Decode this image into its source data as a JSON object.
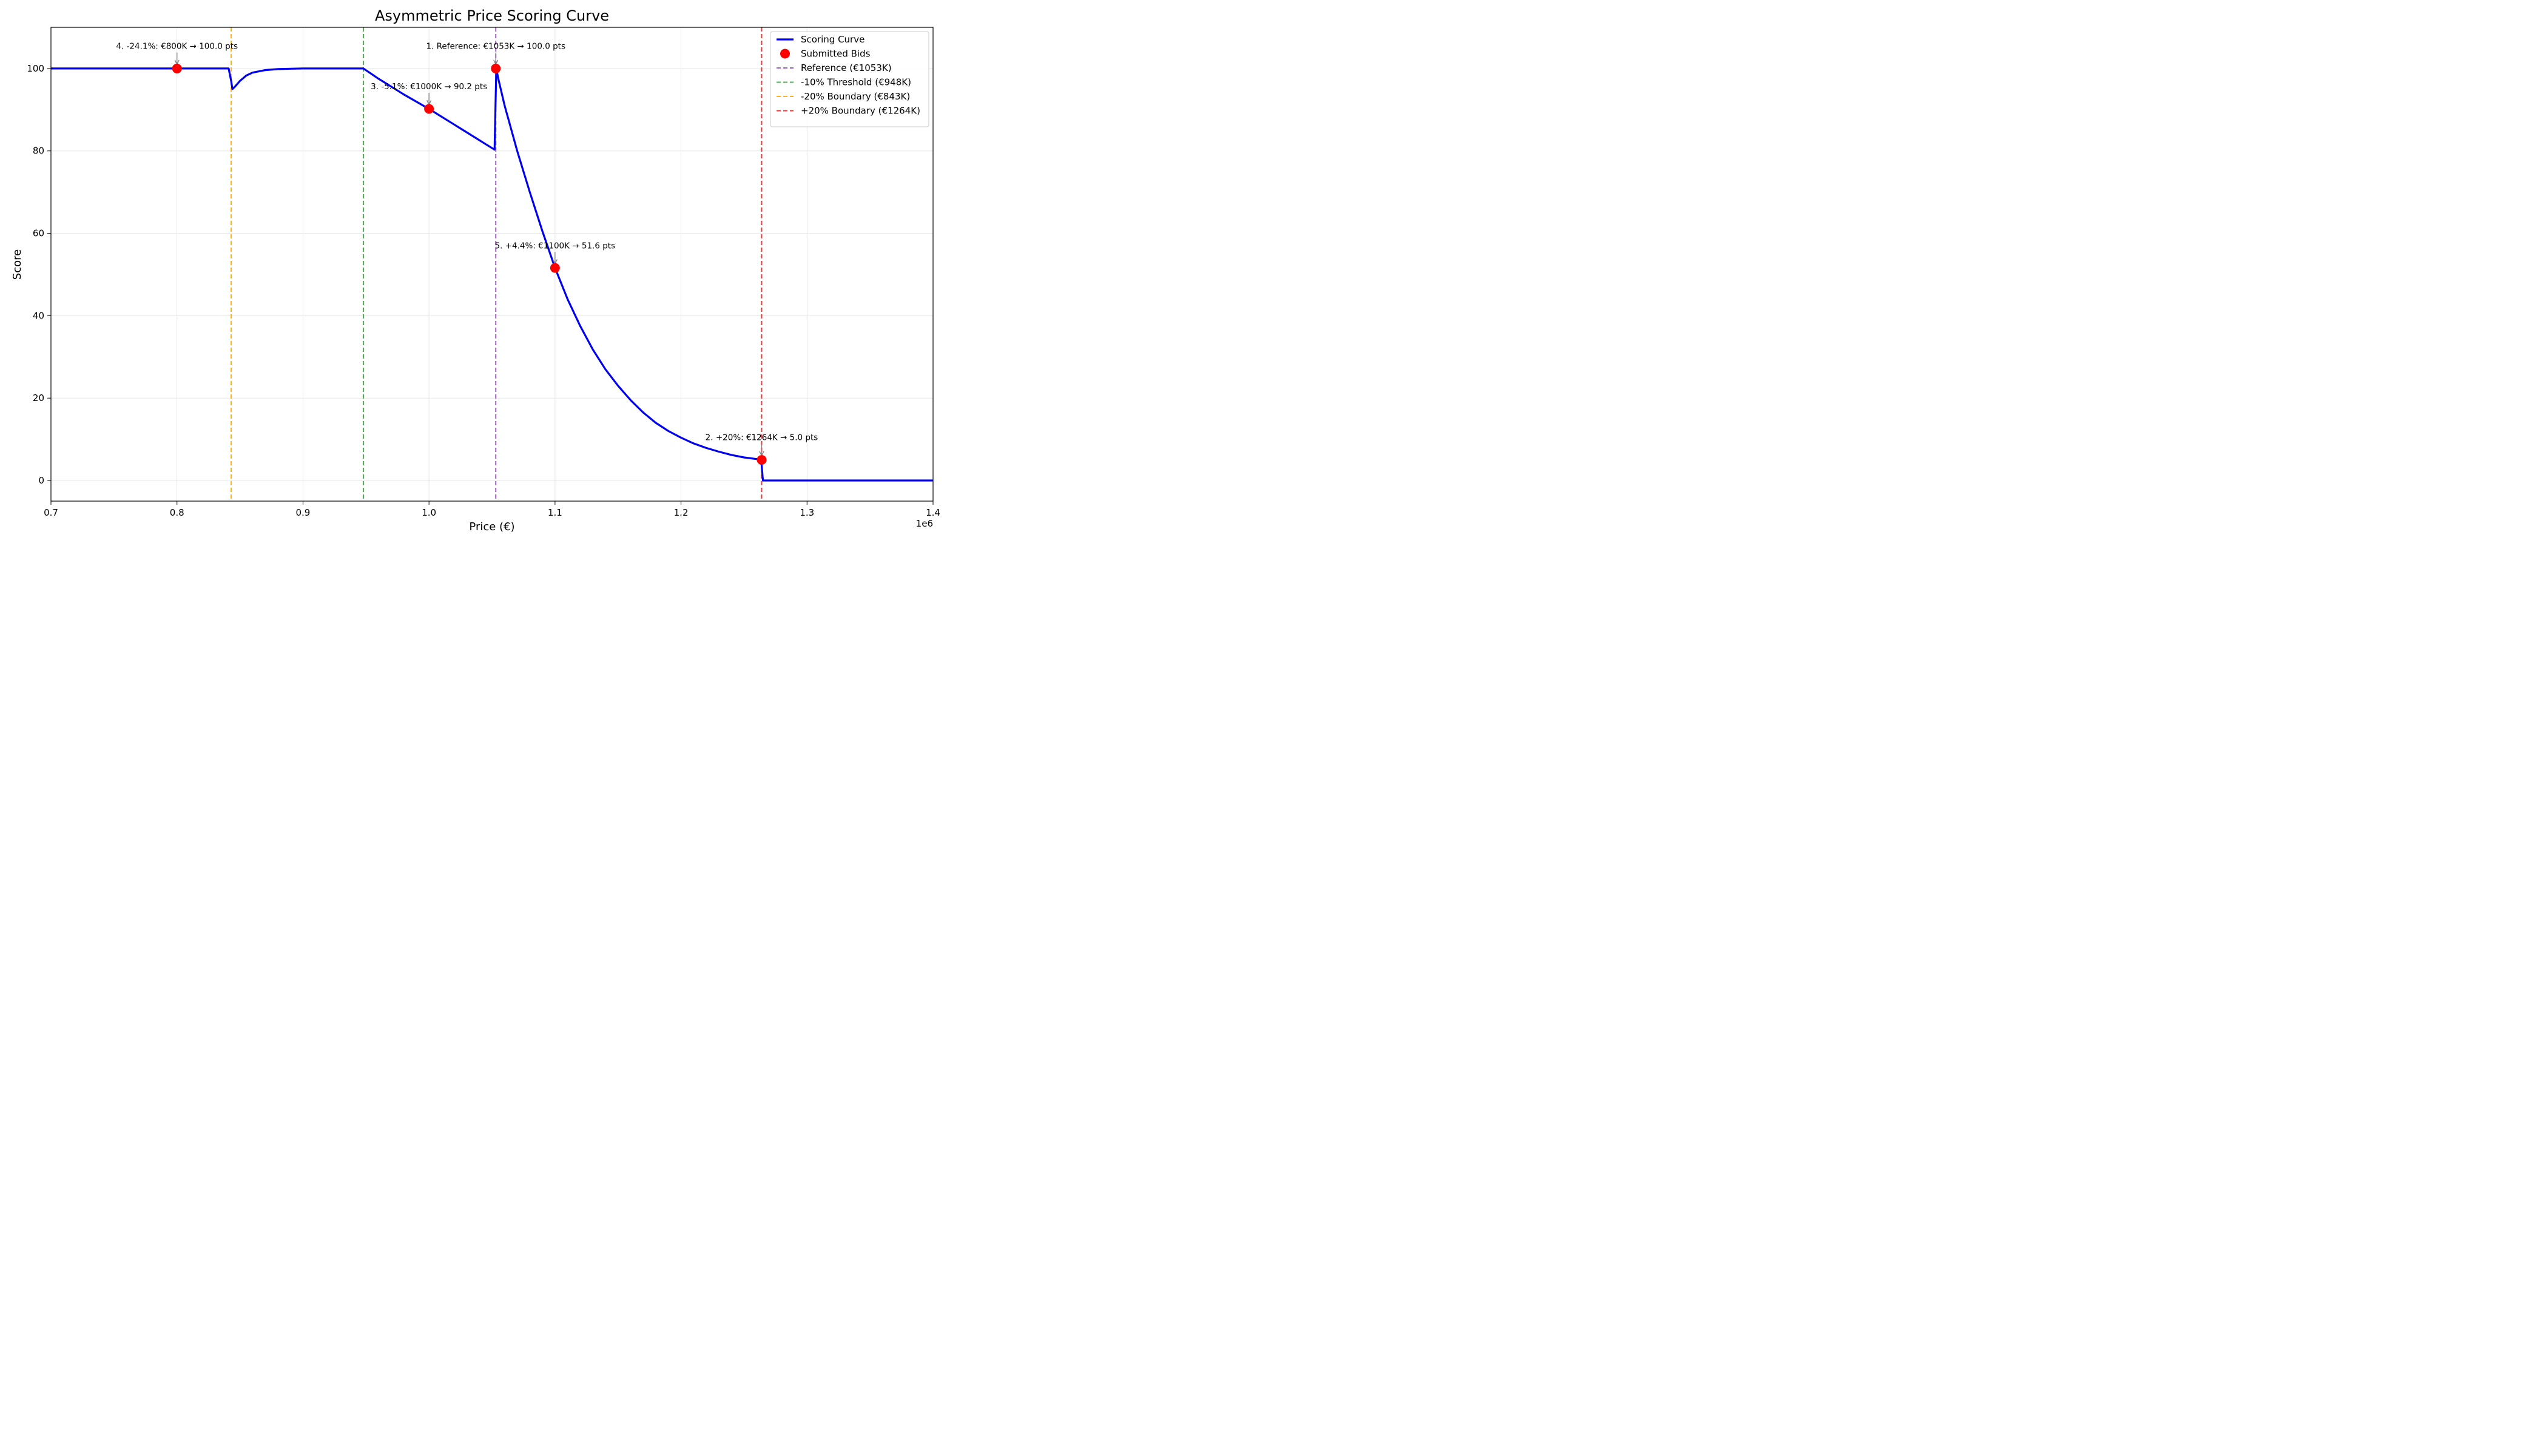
{
  "chart_data": {
    "type": "line",
    "title": "Asymmetric Price Scoring Curve",
    "xlabel": "Price (€)",
    "ylabel": "Score",
    "x_offset_label": "1e6",
    "xlim": [
      700000,
      1400000
    ],
    "ylim": [
      -5,
      110
    ],
    "x_ticks": [
      700000,
      800000,
      900000,
      1000000,
      1100000,
      1200000,
      1300000,
      1400000
    ],
    "x_tick_labels": [
      "0.7",
      "0.8",
      "0.9",
      "1.0",
      "1.1",
      "1.2",
      "1.3",
      "1.4"
    ],
    "y_ticks": [
      0,
      20,
      40,
      60,
      80,
      100
    ],
    "y_tick_labels": [
      "0",
      "20",
      "40",
      "60",
      "80",
      "100"
    ],
    "grid": true,
    "legend_position": "top-right",
    "series": [
      {
        "name": "Scoring Curve",
        "kind": "line",
        "color": "#0000ee",
        "x": [
          700000,
          841000,
          843000,
          844000,
          846000,
          850000,
          855000,
          860000,
          870000,
          880000,
          890000,
          900000,
          948000,
          960000,
          980000,
          1000000,
          1020000,
          1040000,
          1052000,
          1053400,
          1055000,
          1060000,
          1070000,
          1080000,
          1090000,
          1100000,
          1110000,
          1120000,
          1130000,
          1140000,
          1150000,
          1160000,
          1170000,
          1180000,
          1190000,
          1200000,
          1210000,
          1220000,
          1230000,
          1240000,
          1250000,
          1260000,
          1263600,
          1265000,
          1300000,
          1400000
        ],
        "y": [
          100,
          100,
          97,
          95,
          95.6,
          97,
          98.3,
          99,
          99.6,
          99.85,
          99.95,
          100,
          100,
          97.5,
          93.7,
          90.2,
          86.4,
          82.6,
          80.3,
          100,
          97.5,
          91,
          80,
          70,
          60.5,
          51.6,
          44,
          37.5,
          31.8,
          27,
          23,
          19.5,
          16.5,
          14,
          12,
          10.4,
          9,
          7.9,
          7,
          6.2,
          5.6,
          5.2,
          5,
          0,
          0,
          0
        ]
      }
    ],
    "points": {
      "name": "Submitted Bids",
      "color": "#ff0000",
      "x": [
        800000,
        1000000,
        1053000,
        1100000,
        1264000
      ],
      "y": [
        100,
        90.2,
        100,
        51.6,
        5
      ]
    },
    "reference_lines": [
      {
        "name": "Reference (€1053K)",
        "x": 1053000,
        "color": "#8e44ad"
      },
      {
        "name": "-10% Threshold (€948K)",
        "x": 948000,
        "color": "#2ca02c"
      },
      {
        "name": "-20% Boundary (€843K)",
        "x": 843000,
        "color": "#ffa500"
      },
      {
        "name": "+20% Boundary (€1264K)",
        "x": 1264000,
        "color": "#e41a1c"
      }
    ],
    "annotations": [
      {
        "text": "4. -24.1%: €800K → 100.0 pts",
        "x": 800000,
        "y": 100,
        "text_x": 800000,
        "text_y": 105.5
      },
      {
        "text": "1. Reference: €1053K → 100.0 pts",
        "x": 1053000,
        "y": 100,
        "text_x": 1053000,
        "text_y": 105.5
      },
      {
        "text": "3. -5.1%: €1000K → 90.2 pts",
        "x": 1000000,
        "y": 90.2,
        "text_x": 1000000,
        "text_y": 95.7
      },
      {
        "text": "5. +4.4%: €1100K → 51.6 pts",
        "x": 1100000,
        "y": 51.6,
        "text_x": 1100000,
        "text_y": 57.1
      },
      {
        "text": "2. +20%: €1264K → 5.0 pts",
        "x": 1264000,
        "y": 5,
        "text_x": 1264000,
        "text_y": 10.5
      }
    ],
    "legend": [
      {
        "label": "Scoring Curve",
        "type": "line",
        "color": "#0000ee"
      },
      {
        "label": "Submitted Bids",
        "type": "marker",
        "color": "#ff0000"
      },
      {
        "label": "Reference (€1053K)",
        "type": "dashed",
        "color": "#8e44ad"
      },
      {
        "label": "-10% Threshold (€948K)",
        "type": "dashed",
        "color": "#2ca02c"
      },
      {
        "label": "-20% Boundary (€843K)",
        "type": "dashed",
        "color": "#ffa500"
      },
      {
        "label": "+20% Boundary (€1264K)",
        "type": "dashed",
        "color": "#e41a1c"
      }
    ]
  }
}
